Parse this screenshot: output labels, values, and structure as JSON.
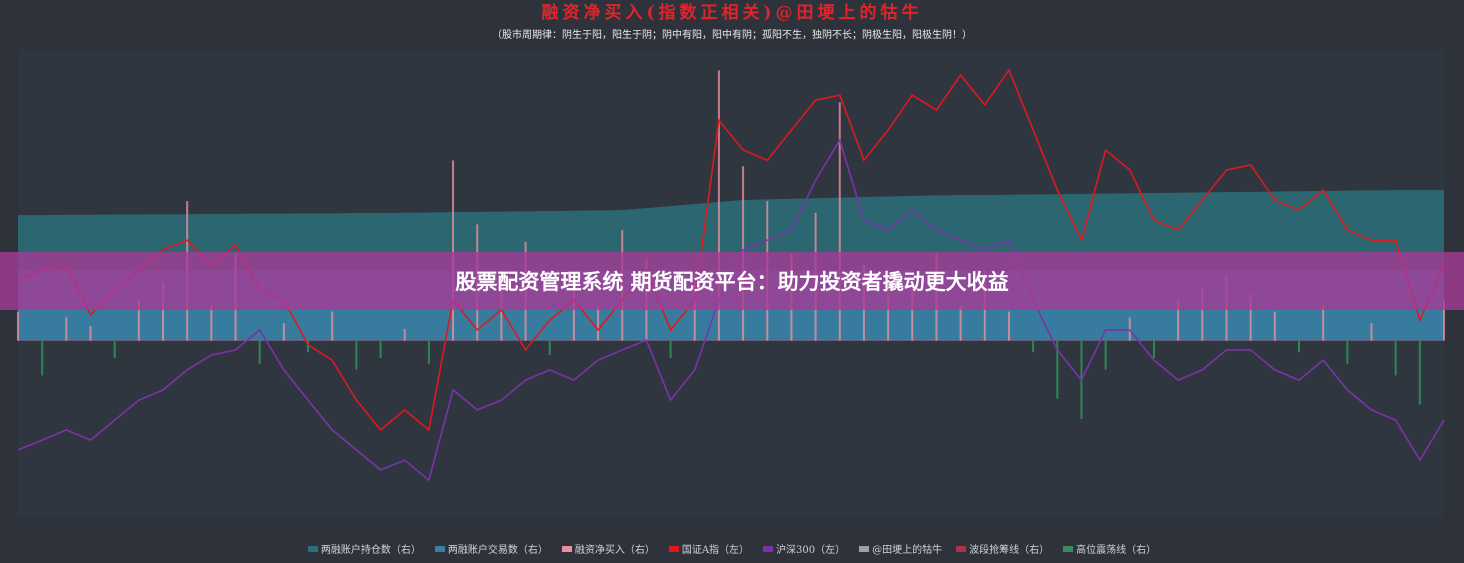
{
  "chart_data": {
    "type": "line",
    "title": "融资净买入(指数正相关)@田埂上的牯牛",
    "subtitle": "（股市周期律：阴生于阳，阳生于阴；阴中有阳，阳中有阴；孤阳不生，独阴不长；阴极生阳，阳极生阴！）",
    "categories": [
      null,
      null,
      null,
      null,
      null,
      null,
      null,
      null,
      null,
      null,
      null,
      null,
      null,
      null,
      null,
      null,
      null,
      null,
      null,
      null,
      null,
      null,
      null,
      null,
      null,
      null,
      null,
      null,
      null,
      null,
      null,
      null,
      null,
      null,
      null,
      null,
      null,
      null,
      null,
      null,
      null,
      null,
      null,
      null,
      null,
      null,
      null,
      null,
      null,
      null,
      null,
      null,
      null,
      null,
      null,
      null,
      null,
      null,
      null,
      null
    ],
    "ylim": [
      0,
      100
    ],
    "y2lim": [
      -60,
      100
    ],
    "series": [
      {
        "name": "两融账户持仓数（右）",
        "kind": "area",
        "axis": "y2",
        "color": "#2a6e7a",
        "values": [
          43.2,
          43.2,
          43.3,
          43.3,
          43.4,
          43.4,
          43.5,
          43.5,
          43.6,
          43.6,
          43.7,
          43.7,
          43.8,
          43.8,
          43.9,
          43.9,
          44.0,
          44.1,
          44.2,
          44.3,
          44.4,
          44.5,
          44.6,
          44.7,
          44.8,
          44.9,
          45.6,
          46.3,
          47.0,
          47.7,
          48.4,
          48.6,
          48.8,
          49.0,
          49.2,
          49.4,
          49.6,
          49.8,
          50.0,
          50.1,
          50.1,
          50.2,
          50.3,
          50.4,
          50.5,
          50.6,
          50.7,
          50.8,
          50.9,
          51.0,
          51.1,
          51.2,
          51.3,
          51.4,
          51.5,
          51.6,
          51.7,
          51.8,
          51.8,
          51.8
        ]
      },
      {
        "name": "两融账户交易数（右）",
        "kind": "area",
        "axis": "y2",
        "color": "#3a7fa6",
        "values": [
          24,
          24,
          24,
          24,
          24,
          24,
          24,
          24,
          24,
          24,
          24,
          24,
          24,
          24,
          24,
          24,
          24,
          24,
          24,
          24,
          24,
          24,
          24,
          24,
          24,
          24,
          24,
          24,
          24,
          24,
          24,
          24,
          24,
          24,
          24,
          24,
          24,
          24,
          24,
          24,
          24,
          24,
          24,
          24,
          24,
          24,
          24,
          24,
          24,
          24,
          24,
          24,
          24,
          24,
          24,
          24,
          24,
          24,
          24,
          24
        ]
      },
      {
        "name": "融资净买入（右）",
        "kind": "bar",
        "axis": "y2",
        "color": "#e8909e",
        "negative_color": "#2e9a5a",
        "values": [
          10,
          -12,
          8,
          5,
          -6,
          14,
          20,
          48,
          12,
          30,
          -8,
          6,
          -4,
          10,
          -10,
          -6,
          4,
          -8,
          62,
          40,
          22,
          34,
          -5,
          18,
          12,
          38,
          28,
          -6,
          20,
          93,
          60,
          48,
          30,
          44,
          82,
          26,
          22,
          18,
          30,
          12,
          24,
          10,
          -4,
          -20,
          -27,
          -10,
          8,
          -6,
          14,
          18,
          22,
          16,
          10,
          -4,
          12,
          -8,
          6,
          -12,
          -22,
          14
        ]
      },
      {
        "name": "国证A指（左）",
        "kind": "line",
        "axis": "y",
        "color": "#e0181e",
        "values": [
          50.5,
          52.7,
          53.8,
          43,
          48.4,
          52.7,
          57,
          59.1,
          53.8,
          58.1,
          48.4,
          46.2,
          36.6,
          33.3,
          24.7,
          18.3,
          22.6,
          18.3,
          46.2,
          39.8,
          44.1,
          35.5,
          41.9,
          46.2,
          39.8,
          46.2,
          52.7,
          39.8,
          46.2,
          84.9,
          78.5,
          76.3,
          82.8,
          89.2,
          90.3,
          76.3,
          82.8,
          90.3,
          87.1,
          94.6,
          88.2,
          95.7,
          82.8,
          69.9,
          59.1,
          78.5,
          74.2,
          63.4,
          61.3,
          67.7,
          74.2,
          75.3,
          67.7,
          65.6,
          69.9,
          61.3,
          59.1,
          59.1,
          41.9,
          53.8
        ]
      },
      {
        "name": "沪深300（左）",
        "kind": "line",
        "axis": "y",
        "color": "#7a34a8",
        "values": [
          14,
          16.1,
          18.3,
          16.1,
          20.4,
          24.7,
          26.9,
          31.2,
          34.4,
          35.5,
          39.8,
          31.2,
          24.7,
          18.3,
          14,
          9.7,
          11.8,
          7.5,
          26.9,
          22.6,
          24.7,
          29,
          31.2,
          29,
          33.3,
          35.5,
          37.6,
          24.7,
          31.2,
          46.2,
          57,
          59.1,
          61.3,
          72,
          80.6,
          63.4,
          61.3,
          65.6,
          61.3,
          59.1,
          57,
          59.1,
          46.2,
          35.5,
          29,
          39.8,
          39.8,
          33.3,
          29,
          31.2,
          35.5,
          35.5,
          31.2,
          29,
          33.3,
          26.9,
          22.6,
          20.4,
          11.8,
          20.4
        ]
      }
    ],
    "legend_only": [
      {
        "name": "@田埂上的牯牛",
        "color": "#9aa0a8"
      },
      {
        "name": "波段抢筹线（右）",
        "color": "#b0304a"
      },
      {
        "name": "高位震荡线（右）",
        "color": "#3a8a5a"
      }
    ]
  },
  "banner": {
    "text": "股票配资管理系统 期货配资平台：助力投资者撬动更大收益"
  }
}
